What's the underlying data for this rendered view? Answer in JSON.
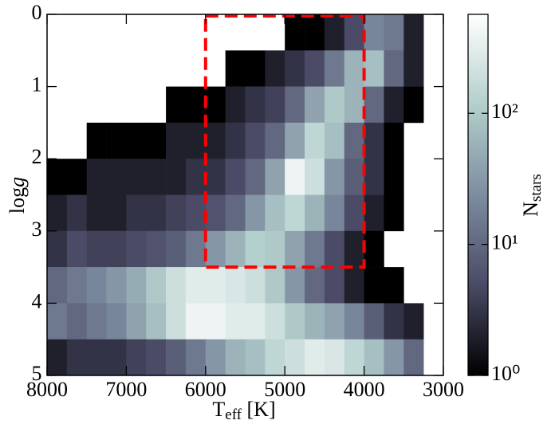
{
  "chart_data": {
    "type": "heatmap",
    "xlabel": [
      "T",
      "eff",
      " [K]"
    ],
    "ylabel": [
      "log",
      "g"
    ],
    "xlim": [
      8000,
      3000
    ],
    "ylim": [
      5,
      0
    ],
    "xticks": [
      8000,
      7000,
      6000,
      5000,
      4000,
      3000
    ],
    "yticks": [
      0,
      1,
      2,
      3,
      4,
      5
    ],
    "xbins": [
      8000,
      7750,
      7500,
      7250,
      7000,
      6750,
      6500,
      6250,
      6000,
      5750,
      5500,
      5250,
      5000,
      4750,
      4500,
      4250,
      4000,
      3750,
      3500,
      3250,
      3000
    ],
    "ybins": [
      0,
      0.5,
      1,
      1.5,
      2,
      2.5,
      3,
      3.5,
      4,
      4.5,
      5
    ],
    "z": [
      [
        null,
        null,
        null,
        null,
        null,
        null,
        null,
        null,
        null,
        null,
        null,
        null,
        1,
        1,
        2,
        5,
        20,
        15,
        2,
        null
      ],
      [
        null,
        null,
        null,
        null,
        null,
        null,
        null,
        null,
        null,
        1,
        1,
        2,
        3,
        5,
        15,
        60,
        80,
        10,
        2,
        null
      ],
      [
        null,
        null,
        null,
        null,
        null,
        null,
        1,
        1,
        1,
        2,
        3,
        4,
        10,
        40,
        100,
        60,
        10,
        2,
        1,
        null
      ],
      [
        null,
        null,
        1,
        1,
        1,
        1,
        2,
        2,
        2,
        3,
        5,
        10,
        40,
        150,
        80,
        10,
        3,
        1,
        null,
        null
      ],
      [
        1,
        1,
        2,
        2,
        2,
        2,
        2,
        3,
        3,
        5,
        10,
        40,
        400,
        200,
        30,
        8,
        3,
        1,
        null,
        null
      ],
      [
        2,
        3,
        2,
        2,
        3,
        3,
        4,
        5,
        6,
        10,
        30,
        80,
        150,
        60,
        20,
        5,
        2,
        1,
        null,
        null
      ],
      [
        3,
        5,
        4,
        4,
        5,
        6,
        8,
        15,
        30,
        60,
        120,
        100,
        40,
        15,
        5,
        2,
        1,
        null,
        null,
        null
      ],
      [
        10,
        15,
        20,
        30,
        50,
        100,
        200,
        300,
        300,
        250,
        200,
        100,
        30,
        10,
        5,
        2,
        1,
        1,
        null,
        null
      ],
      [
        15,
        10,
        15,
        20,
        40,
        80,
        200,
        400,
        400,
        300,
        300,
        200,
        100,
        60,
        40,
        20,
        8,
        3,
        2,
        null
      ],
      [
        2,
        3,
        3,
        3,
        4,
        5,
        8,
        15,
        30,
        60,
        80,
        150,
        200,
        300,
        250,
        150,
        80,
        30,
        10,
        null
      ]
    ],
    "colorscale": [
      "#000000",
      "#4a4a66",
      "#7d8da0",
      "#b3cfcc",
      "#ffffff"
    ],
    "highlight": {
      "x0": 6000,
      "x1": 4000,
      "y0": 0,
      "y1": 3.5,
      "color": "#ff0000"
    },
    "colorbar": {
      "label": [
        "N",
        "stars"
      ],
      "lim": [
        1,
        570
      ],
      "log": true,
      "ticks": [
        {
          "value": 1,
          "label": "10⁰"
        },
        {
          "value": 10,
          "label": "10¹"
        },
        {
          "value": 100,
          "label": "10²"
        }
      ]
    }
  }
}
